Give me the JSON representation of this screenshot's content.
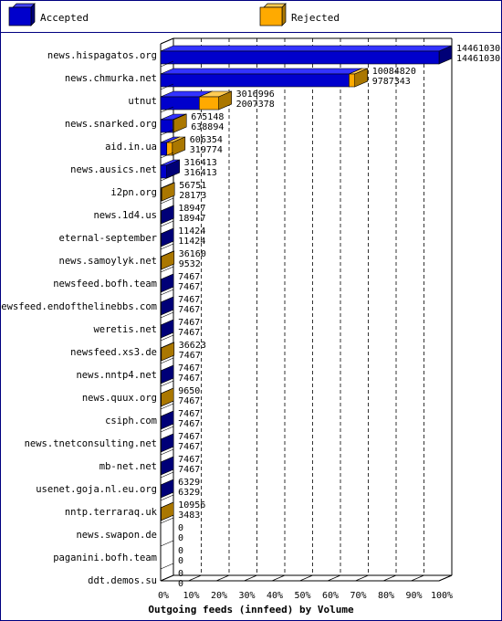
{
  "legend": {
    "accepted_label": "Accepted",
    "rejected_label": "Rejected"
  },
  "colors": {
    "accepted": "#0000cc",
    "accepted_side": "#000077",
    "rejected": "#ffaa00",
    "rejected_side": "#aa7700",
    "border": "#000080"
  },
  "chart_data": {
    "type": "bar",
    "orientation": "horizontal",
    "stacked": true,
    "three_d": true,
    "xlabel": "Outgoing feeds (innfeed) by Volume",
    "ylabel": "",
    "xticks": [
      "0%",
      "10%",
      "20%",
      "30%",
      "40%",
      "50%",
      "60%",
      "70%",
      "80%",
      "90%",
      "100%"
    ],
    "grid": "vertical dashed",
    "legend_position": "top",
    "categories": [
      "news.hispagatos.org",
      "news.chmurka.net",
      "utnut",
      "news.snarked.org",
      "aid.in.ua",
      "news.ausics.net",
      "i2pn.org",
      "news.1d4.us",
      "eternal-september",
      "news.samoylyk.net",
      "newsfeed.bofh.team",
      "newsfeed.endofthelinebbs.com",
      "weretis.net",
      "newsfeed.xs3.de",
      "news.nntp4.net",
      "news.quux.org",
      "csiph.com",
      "news.tnetconsulting.net",
      "mb-net.net",
      "usenet.goja.nl.eu.org",
      "nntp.terraraq.uk",
      "news.swapon.de",
      "paganini.bofh.team",
      "ddt.demos.su"
    ],
    "offered": [
      14461030,
      10084820,
      3016996,
      675148,
      606354,
      316413,
      56751,
      18947,
      11424,
      36160,
      7467,
      7467,
      7467,
      36623,
      7467,
      9650,
      7467,
      7467,
      7467,
      6329,
      10956,
      0,
      0,
      0
    ],
    "accepted": [
      14461030,
      9787343,
      2007378,
      638894,
      319774,
      316413,
      28173,
      18947,
      11424,
      9532,
      7467,
      7467,
      7467,
      7467,
      7467,
      7467,
      7467,
      7467,
      7467,
      6329,
      3483,
      0,
      0,
      0
    ],
    "series": [
      {
        "name": "Accepted"
      },
      {
        "name": "Rejected"
      }
    ],
    "xlim": [
      0,
      14461030
    ]
  }
}
